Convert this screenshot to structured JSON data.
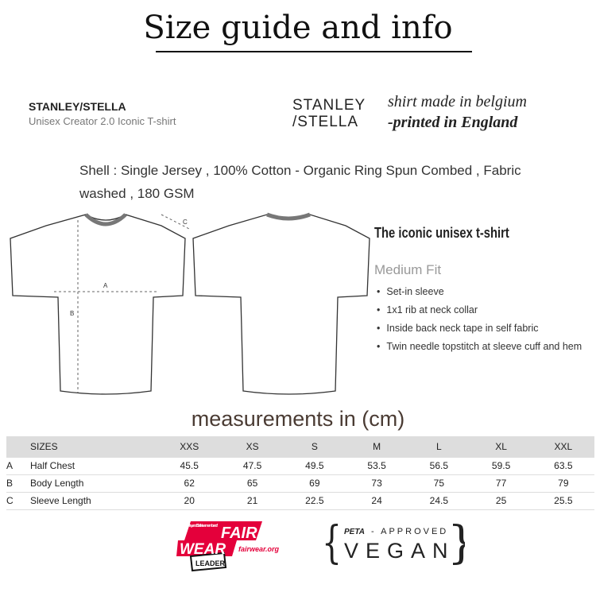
{
  "title": "Size guide and info",
  "brand": "STANLEY/STELLA",
  "product": "Unisex Creator 2.0 Iconic T-shirt",
  "logo": {
    "line1": "STANLEY",
    "line2": "/STELLA"
  },
  "made": {
    "line1": "shirt made in belgium",
    "line2": "-printed in England"
  },
  "shell": "Shell : Single Jersey , 100% Cotton - Organic Ring Spun Combed , Fabric washed , 180 GSM",
  "diagram": {
    "a": "A",
    "b": "B",
    "c": "C"
  },
  "tagline": "The iconic unisex t-shirt",
  "fit": "Medium Fit",
  "features": [
    "Set-in sleeve",
    "1x1 rib at neck collar",
    "Inside back neck tape in self fabric",
    "Twin needle topstitch at sleeve cuff and hem"
  ],
  "measurements_title": "measurements in (cm)",
  "table": {
    "header": [
      "",
      "SIZES",
      "XXS",
      "XS",
      "S",
      "M",
      "L",
      "XL",
      "XXL"
    ],
    "rows": [
      [
        "A",
        "Half Chest",
        "45.5",
        "47.5",
        "49.5",
        "53.5",
        "56.5",
        "59.5",
        "63.5"
      ],
      [
        "B",
        "Body Length",
        "62",
        "65",
        "69",
        "73",
        "75",
        "77",
        "79"
      ],
      [
        "C",
        "Sleeve Length",
        "20",
        "21",
        "22.5",
        "24",
        "24.5",
        "25",
        "25.5"
      ]
    ]
  },
  "fairwear": {
    "small": "Stanley and Stella is a member of",
    "fair": "FAIR",
    "wear": "WEAR",
    "url": "fairwear.org",
    "leader": "LEADER",
    "color": "#e4003b"
  },
  "vegan": {
    "peta": "PETA",
    "approved": "- APPROVED",
    "vegan": "VEGAN"
  }
}
